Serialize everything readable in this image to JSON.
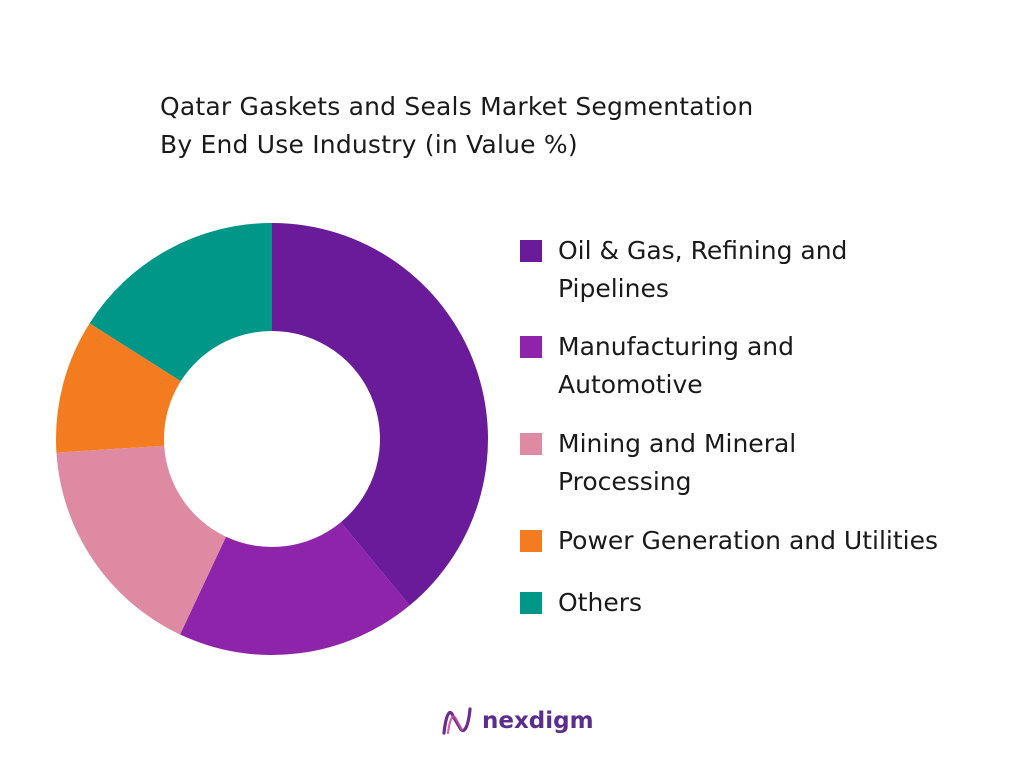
{
  "title": {
    "line1": "Qatar Gaskets and Seals Market Segmentation",
    "line2": "By End Use Industry (in Value %)"
  },
  "chart_data": {
    "type": "pie",
    "donut": true,
    "start_angle_deg": 0,
    "direction": "clockwise",
    "legend_position": "right",
    "series": [
      {
        "label_lines": [
          "Oil & Gas, Refining and",
          "Pipelines"
        ],
        "value": 39,
        "color": "#6a1b9a"
      },
      {
        "label_lines": [
          "Manufacturing and",
          "Automotive"
        ],
        "value": 18,
        "color": "#8e24aa"
      },
      {
        "label_lines": [
          "Mining and Mineral",
          "Processing"
        ],
        "value": 17,
        "color": "#de8aa2"
      },
      {
        "label_lines": [
          "Power Generation and Utilities"
        ],
        "value": 10,
        "color": "#f47c20"
      },
      {
        "label_lines": [
          "Others"
        ],
        "value": 16,
        "color": "#009688"
      }
    ]
  },
  "brand": {
    "name": "nexdigm",
    "icon": "nexdigm-logo-icon"
  }
}
